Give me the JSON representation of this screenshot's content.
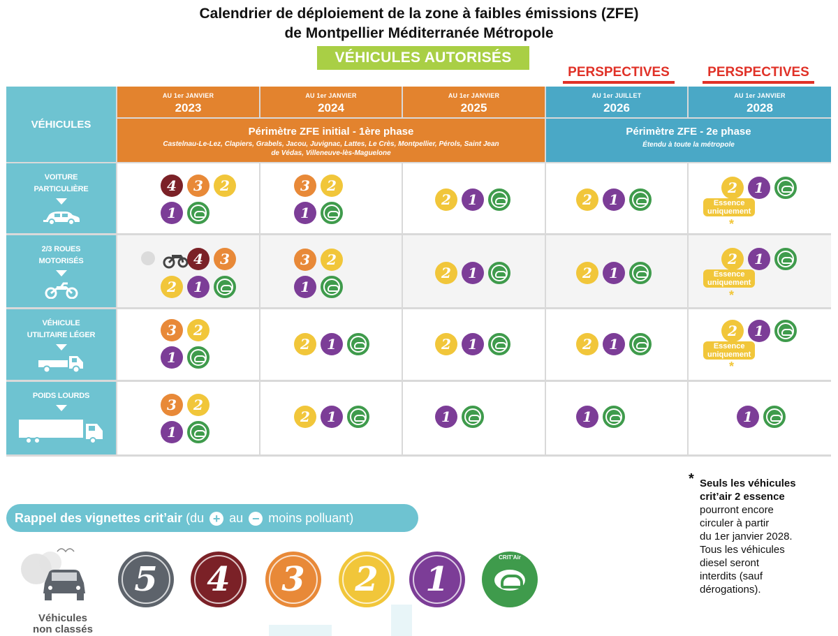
{
  "title": {
    "line1": "Calendrier de déploiement de la zone à faibles émissions (ZFE)",
    "line2": "de Montpellier Méditerranée Métropole"
  },
  "authorized_label": "VÉHICULES AUTORISÉS",
  "perspectives_label": "PERSPECTIVES",
  "header": {
    "vehicles_label": "VÉHICULES",
    "dates": [
      {
        "small": "AU 1er JANVIER",
        "year": "2023"
      },
      {
        "small": "AU 1er JANVIER",
        "year": "2024"
      },
      {
        "small": "AU 1er JANVIER",
        "year": "2025"
      },
      {
        "small": "AU 1er JUILLET",
        "year": "2026"
      },
      {
        "small": "AU 1er JANVIER",
        "year": "2028"
      }
    ],
    "perimeter1_title": "Périmètre ZFE initial - 1ère phase",
    "perimeter1_sub": "Castelnau-Le-Lez, Clapiers, Grabels, Jacou, Juvignac, Lattes, Le Crès, Montpellier, Pérols, Saint Jean de Védas, Villeneuve-lès-Maguelone",
    "perimeter2_title": "Périmètre ZFE - 2e phase",
    "perimeter2_sub": "Étendu à toute la métropole"
  },
  "rows": [
    {
      "label_1": "VOITURE",
      "label_2": "PARTICULIÈRE",
      "icon": "car-icon"
    },
    {
      "label_1": "2/3 ROUES",
      "label_2": "MOTORISÉS",
      "icon": "motorbike-icon"
    },
    {
      "label_1": "VÉHICULE",
      "label_2": "UTILITAIRE LÉGER",
      "icon": "van-icon"
    },
    {
      "label_1": "POIDS LOURDS",
      "label_2": "",
      "icon": "truck-icon"
    }
  ],
  "badges": {
    "v4": "4",
    "v3": "3",
    "v2": "2",
    "v1": "1"
  },
  "essence_label_1": "Essence",
  "essence_label_2": "uniquement",
  "asterisk": "*",
  "legend": {
    "prefix": "Rappel des vignettes crit’air",
    "part1": "(du",
    "plus": "+",
    "part2": "au",
    "minus": "−",
    "part3": "moins polluant)",
    "numbers": [
      "5",
      "4",
      "3",
      "2",
      "1"
    ],
    "critair_label": "CRIT'Air",
    "unclassed_1": "Véhicules",
    "unclassed_2": "non classés"
  },
  "footnote": {
    "bold_1": "Seuls les véhicules",
    "bold_2": "crit’air 2 essence",
    "rest_1": "pourront encore",
    "rest_2": "circuler à partir",
    "rest_3": "du 1er janvier 2028.",
    "rest_4": "Tous les véhicules",
    "rest_5": "diesel seront",
    "rest_6": "interdits (sauf",
    "rest_7": "dérogations)."
  },
  "colors": {
    "orange": "#e3832e",
    "blue": "#4aa8c6",
    "teal": "#6ec3d1",
    "green_header": "#a9cf45",
    "red": "#e03127",
    "critair4": "#7b2127",
    "critair3": "#e88938",
    "critair2": "#f1c63a",
    "critair1": "#7c3d97",
    "critair_e": "#3f9b4c",
    "critair5": "#5d636b"
  }
}
